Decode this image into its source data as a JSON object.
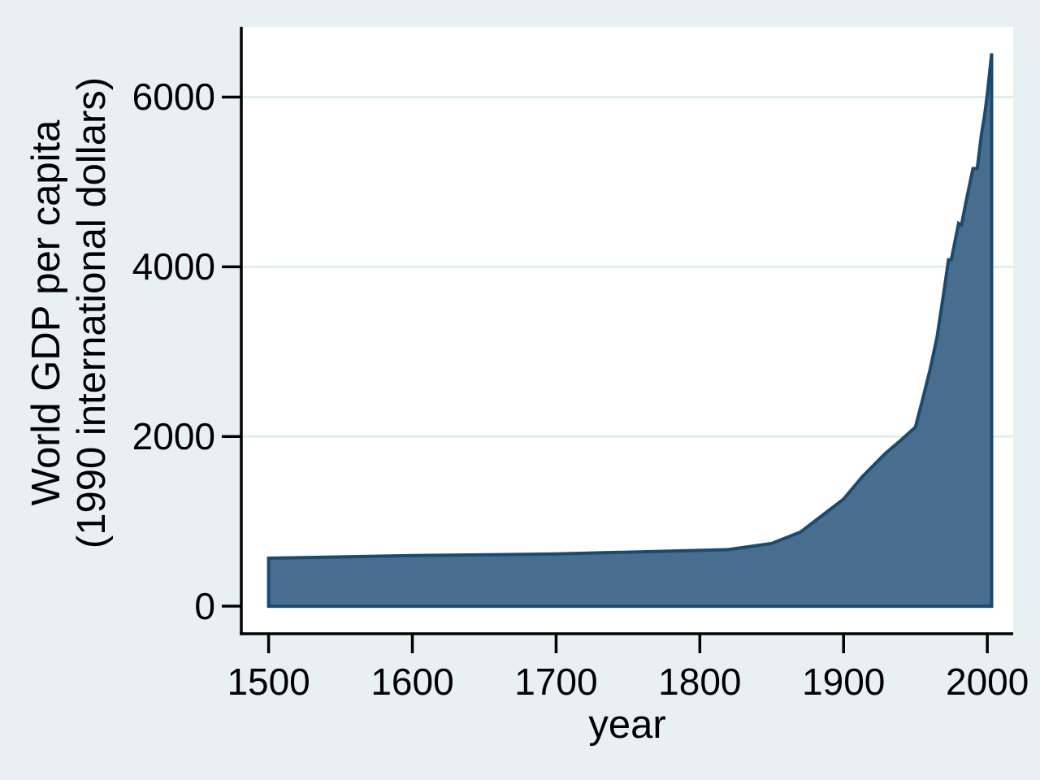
{
  "chart_data": {
    "type": "area",
    "title": "",
    "xlabel": "year",
    "ylabel": "World GDP per capita (1990 international dollars)",
    "ylabel_lines": [
      "World GDP per capita",
      "(1990 international dollars)"
    ],
    "series": [
      {
        "name": "World GDP per capita (1990 international dollars)",
        "x": [
          1500,
          1600,
          1700,
          1820,
          1850,
          1870,
          1900,
          1913,
          1929,
          1940,
          1950,
          1955,
          1960,
          1965,
          1970,
          1973,
          1975,
          1980,
          1982,
          1985,
          1990,
          1993,
          1996,
          1998,
          2000,
          2003
        ],
        "values": [
          566,
          596,
          615,
          667,
          740,
          873,
          1262,
          1525,
          1800,
          1958,
          2111,
          2437,
          2777,
          3166,
          3729,
          4083,
          4085,
          4512,
          4490,
          4750,
          5157,
          5160,
          5572,
          5770,
          6035,
          6516
        ]
      }
    ],
    "baseline": 0,
    "x_ticks": [
      1500,
      1600,
      1700,
      1800,
      1900,
      2000
    ],
    "y_ticks": [
      0,
      2000,
      4000,
      6000
    ],
    "grid_y": [
      2000,
      4000,
      6000
    ],
    "x_domain": [
      1481,
      2018
    ],
    "y_domain": [
      -325,
      6828
    ],
    "grid": "horizontal-only",
    "legend": "none",
    "colors": {
      "background": "#e9f0f3",
      "plot_background": "#ffffff",
      "area_fill": "#486d8f",
      "area_stroke": "#1c4a6e",
      "gridline": "#e2edf1",
      "axis": "#000000",
      "text": "#000000"
    }
  }
}
